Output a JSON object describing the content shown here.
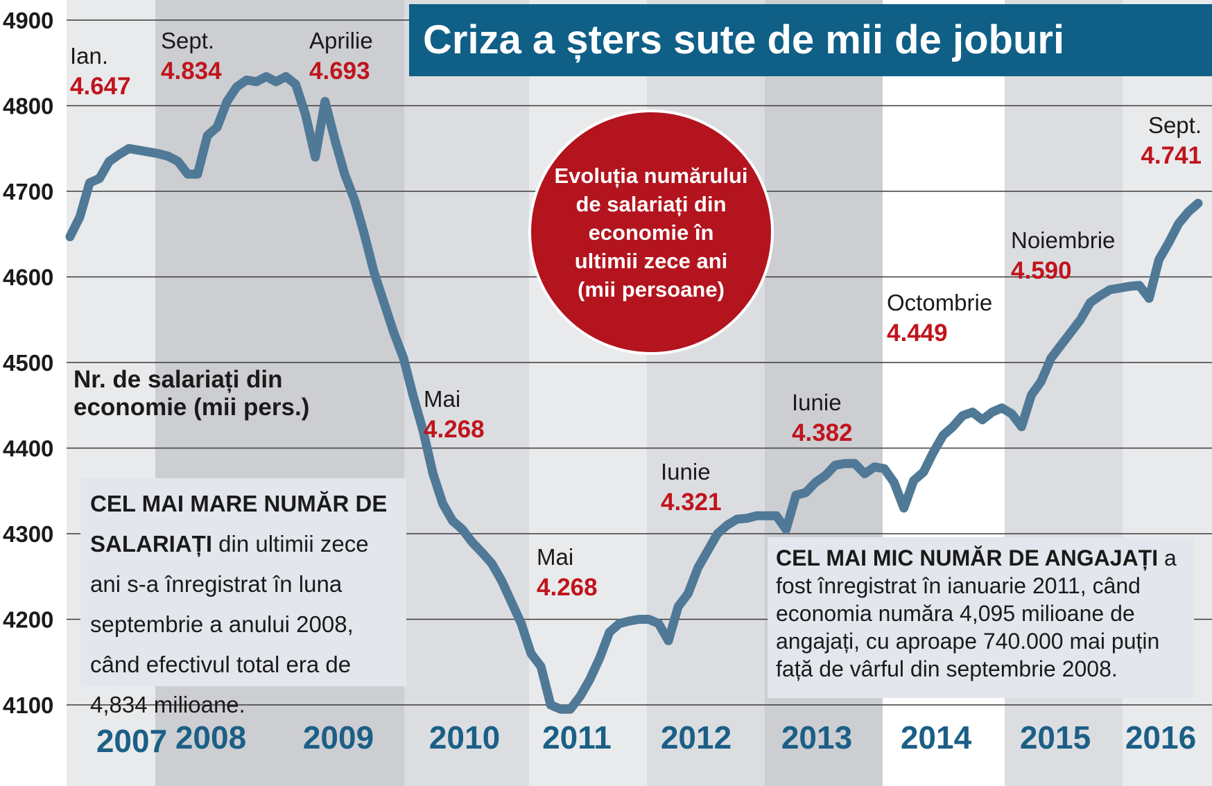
{
  "title": "Criza a șters sute de mii de joburi",
  "circle_text": "Evoluția numărului de salariați din economie în ultimii zece ani (mii persoane)",
  "ylabel": "Nr. de salariați din economie (mii pers.)",
  "box_max": {
    "bold": "CEL MAI MARE NUMĂR DE SALARIAȚI",
    "text": " din ultimii zece ani s-a înregistrat în luna septembrie a anului 2008, când efectivul total era de 4,834 milioane."
  },
  "box_min": {
    "bold": "CEL MAI MIC NUMĂR DE ANGAJAȚI",
    "text": " a fost înregistrat în ianuarie 2011, când economia număra 4,095 milioane de angajați, cu aproape 740.000 mai puțin față de vârful din septembrie 2008."
  },
  "colors": {
    "line": "#4f7996",
    "title_bg": "#0f5f86",
    "circle": "#b3141e",
    "value_text": "#c0141c",
    "year_text": "#1b5f86",
    "band_dark": "#cdced2",
    "band_mid": "#dcdde1",
    "band_light": "#e9eaec"
  },
  "chart_data": {
    "type": "line",
    "ylim": [
      4100,
      4900
    ],
    "yticks": [
      "4900",
      "4800",
      "4700",
      "4600",
      "4500",
      "4400",
      "4300",
      "4200",
      "4100"
    ],
    "years": [
      "2007",
      "2008",
      "2009",
      "2010",
      "2011",
      "2012",
      "2013",
      "2014",
      "2015",
      "2016"
    ],
    "series": [
      {
        "values": [
          4647,
          4670,
          4710,
          4715,
          4735,
          4743,
          4750,
          4748,
          4746,
          4744,
          4741,
          4735,
          4720,
          4720,
          4765,
          4775,
          4805,
          4822,
          4830,
          4828,
          4834,
          4828,
          4834,
          4825,
          4790,
          4740,
          4805,
          4760,
          4720,
          4690,
          4650,
          4605,
          4570,
          4535,
          4505,
          4460,
          4420,
          4370,
          4335,
          4315,
          4305,
          4290,
          4278,
          4265,
          4245,
          4220,
          4195,
          4160,
          4145,
          4100,
          4095,
          4095,
          4110,
          4130,
          4155,
          4185,
          4195,
          4198,
          4200,
          4200,
          4195,
          4175,
          4215,
          4230,
          4260,
          4280,
          4300,
          4310,
          4317,
          4318,
          4321,
          4321,
          4321,
          4305,
          4345,
          4348,
          4360,
          4368,
          4380,
          4382,
          4382,
          4370,
          4378,
          4376,
          4360,
          4330,
          4362,
          4372,
          4395,
          4415,
          4425,
          4438,
          4442,
          4433,
          4442,
          4447,
          4440,
          4425,
          4462,
          4478,
          4505,
          4520,
          4535,
          4550,
          4570,
          4578,
          4585,
          4587,
          4589,
          4590,
          4575,
          4620,
          4640,
          4662,
          4676,
          4686
        ]
      }
    ],
    "annotations": [
      {
        "month": "Ian.",
        "value": "4.647"
      },
      {
        "month": "Sept.",
        "value": "4.834"
      },
      {
        "month": "Aprilie",
        "value": "4.693"
      },
      {
        "month": "Mai",
        "value": "4.268"
      },
      {
        "month": "Mai",
        "value": "4.268"
      },
      {
        "month": "Iunie",
        "value": "4.321"
      },
      {
        "month": "Iunie",
        "value": "4.382"
      },
      {
        "month": "Octombrie",
        "value": "4.449"
      },
      {
        "month": "Noiembrie",
        "value": "4.590"
      },
      {
        "month": "Sept.",
        "value": "4.741"
      }
    ]
  }
}
